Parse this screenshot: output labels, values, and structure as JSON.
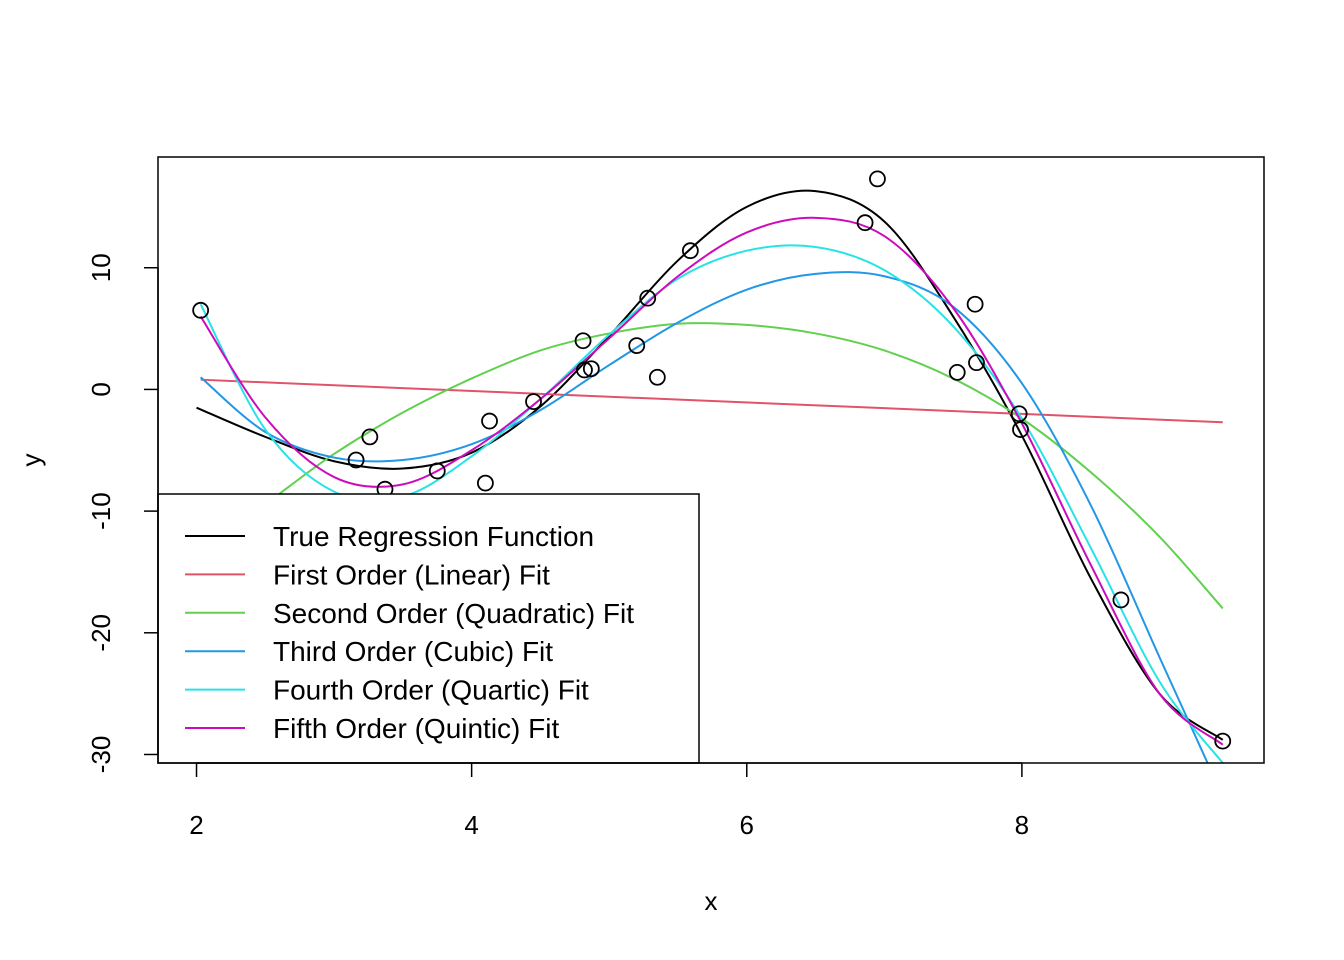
{
  "chart_data": {
    "type": "scatter",
    "title": "",
    "xlabel": "x",
    "ylabel": "y",
    "xlim": [
      1.72,
      9.76
    ],
    "ylim": [
      -30.7,
      19.1
    ],
    "x_ticks": [
      "2",
      "4",
      "6",
      "8"
    ],
    "y_ticks": [
      "-30",
      "-20",
      "-10",
      "0",
      "10"
    ],
    "grid": false,
    "legend_position": "bottom-left",
    "points": [
      {
        "x": 2.03,
        "y": 6.5
      },
      {
        "x": 3.16,
        "y": -5.8
      },
      {
        "x": 3.26,
        "y": -3.9
      },
      {
        "x": 3.37,
        "y": -8.2
      },
      {
        "x": 3.75,
        "y": -6.7
      },
      {
        "x": 4.1,
        "y": -7.7
      },
      {
        "x": 4.13,
        "y": -2.6
      },
      {
        "x": 4.45,
        "y": -1.0
      },
      {
        "x": 4.81,
        "y": 4.0
      },
      {
        "x": 4.82,
        "y": 1.6
      },
      {
        "x": 4.87,
        "y": 1.7
      },
      {
        "x": 5.2,
        "y": 3.6
      },
      {
        "x": 5.28,
        "y": 7.5
      },
      {
        "x": 5.35,
        "y": 1.0
      },
      {
        "x": 5.59,
        "y": 11.4
      },
      {
        "x": 6.86,
        "y": 13.7
      },
      {
        "x": 6.95,
        "y": 17.3
      },
      {
        "x": 7.53,
        "y": 1.4
      },
      {
        "x": 7.66,
        "y": 7.0
      },
      {
        "x": 7.67,
        "y": 2.2
      },
      {
        "x": 7.98,
        "y": -2.0
      },
      {
        "x": 7.99,
        "y": -3.3
      },
      {
        "x": 8.72,
        "y": -17.3
      },
      {
        "x": 9.46,
        "y": -28.9
      }
    ],
    "series": [
      {
        "name": "True Regression Function",
        "color": "#000000",
        "x": [
          2.0,
          2.5,
          3.0,
          3.5,
          4.0,
          4.5,
          5.0,
          5.5,
          6.0,
          6.5,
          7.0,
          7.5,
          8.0,
          8.5,
          9.0,
          9.46
        ],
        "y": [
          -1.5,
          -3.9,
          -5.9,
          -6.5,
          -5.2,
          -1.4,
          4.4,
          10.6,
          15.0,
          16.3,
          13.8,
          6.0,
          -3.8,
          -15.5,
          -25.0,
          -28.8
        ]
      },
      {
        "name": "First Order (Linear) Fit",
        "color": "#DF536B",
        "x": [
          2.03,
          9.46
        ],
        "y": [
          0.8,
          -2.7
        ]
      },
      {
        "name": "Second Order (Quadratic) Fit",
        "color": "#61D04F",
        "x": [
          2.6,
          3.0,
          3.5,
          4.0,
          4.5,
          5.0,
          5.5,
          6.0,
          6.5,
          7.0,
          7.5,
          8.0,
          8.5,
          9.0,
          9.46
        ],
        "y": [
          -8.6,
          -5.3,
          -1.9,
          0.9,
          3.2,
          4.6,
          5.4,
          5.3,
          4.6,
          3.2,
          0.9,
          -2.4,
          -6.8,
          -12.1,
          -18.0
        ]
      },
      {
        "name": "Third Order (Cubic) Fit",
        "color": "#2297E6",
        "x": [
          2.03,
          2.5,
          3.0,
          3.5,
          4.0,
          4.5,
          5.0,
          5.5,
          6.0,
          6.5,
          7.0,
          7.5,
          8.0,
          8.5,
          9.0,
          9.35
        ],
        "y": [
          1.0,
          -3.5,
          -5.6,
          -5.8,
          -4.5,
          -1.7,
          2.0,
          5.5,
          8.2,
          9.5,
          9.3,
          6.8,
          0.5,
          -9.5,
          -22.0,
          -30.7
        ]
      },
      {
        "name": "Fourth Order (Quartic) Fit",
        "color": "#28E2E5",
        "x": [
          2.03,
          2.5,
          3.0,
          3.5,
          4.0,
          4.5,
          5.0,
          5.5,
          6.0,
          6.5,
          7.0,
          7.5,
          8.0,
          8.5,
          9.0,
          9.46
        ],
        "y": [
          7.0,
          -3.3,
          -8.4,
          -8.8,
          -5.5,
          -0.8,
          4.5,
          9.1,
          11.4,
          11.7,
          9.8,
          5.2,
          -2.4,
          -13.0,
          -24.0,
          -30.7
        ]
      },
      {
        "name": "Fifth Order (Quintic) Fit",
        "color": "#CD0BBC",
        "x": [
          2.03,
          2.5,
          3.0,
          3.5,
          4.0,
          4.5,
          5.0,
          5.5,
          6.0,
          6.5,
          7.0,
          7.5,
          8.0,
          8.5,
          9.0,
          9.46
        ],
        "y": [
          6.0,
          -2.3,
          -7.2,
          -7.8,
          -5.0,
          -0.8,
          4.2,
          9.3,
          12.9,
          14.1,
          12.6,
          6.7,
          -2.8,
          -14.4,
          -25.0,
          -29.2
        ]
      }
    ],
    "legend": [
      "True Regression Function",
      "First Order (Linear) Fit",
      "Second Order (Quadratic) Fit",
      "Third Order (Cubic) Fit",
      "Fourth Order (Quartic) Fit",
      "Fifth Order (Quintic) Fit"
    ]
  }
}
